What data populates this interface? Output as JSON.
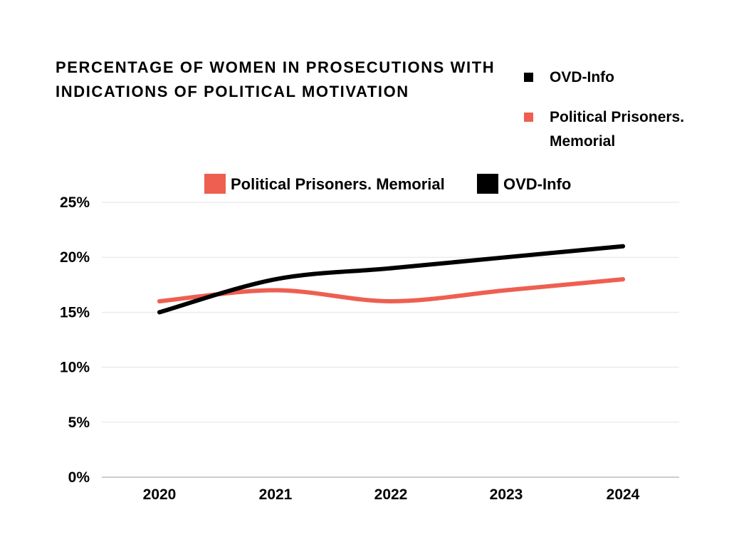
{
  "title": {
    "line1": "PERCENTAGE OF WOMEN IN PROSECUTIONS WITH",
    "line2": "INDICATIONS OF POLITICAL MOTIVATION"
  },
  "side_legend": [
    {
      "label": "OVD-Info",
      "color": "#000000"
    },
    {
      "label": "Political Prisoners. Memorial",
      "line1": "Political Prisoners.",
      "line2": "Memorial",
      "color": "#ee5f51"
    }
  ],
  "chart_data": {
    "type": "line",
    "categories": [
      "2020",
      "2021",
      "2022",
      "2023",
      "2024"
    ],
    "series": [
      {
        "name": "Political Prisoners. Memorial",
        "values": [
          16,
          17,
          16,
          17,
          18
        ],
        "color": "#ee5f51"
      },
      {
        "name": "OVD-Info",
        "values": [
          15,
          18,
          19,
          20,
          21
        ],
        "color": "#000000"
      }
    ],
    "y_ticks": [
      "0%",
      "5%",
      "10%",
      "15%",
      "20%",
      "25%"
    ],
    "ylim": [
      0,
      25
    ],
    "grid": true,
    "legend_position": "top"
  }
}
